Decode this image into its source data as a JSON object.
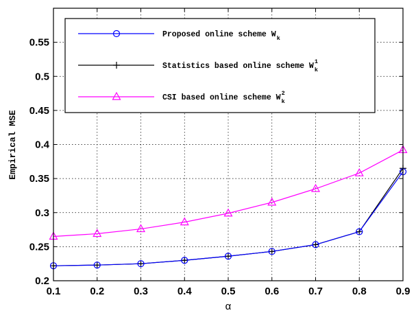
{
  "chart_data": {
    "type": "line",
    "xlabel": "α",
    "ylabel": "Empirical MSE",
    "xlim": [
      0.1,
      0.9
    ],
    "ylim": [
      0.2,
      0.6
    ],
    "x_ticks": [
      "0.1",
      "0.2",
      "0.3",
      "0.4",
      "0.5",
      "0.6",
      "0.7",
      "0.8",
      "0.9"
    ],
    "y_ticks": [
      "0.2",
      "0.25",
      "0.3",
      "0.35",
      "0.4",
      "0.45",
      "0.5",
      "0.55"
    ],
    "grid": true,
    "legend_position": "top",
    "x": [
      0.1,
      0.2,
      0.3,
      0.4,
      0.5,
      0.6,
      0.7,
      0.8,
      0.9
    ],
    "series": [
      {
        "name": "Proposed online scheme W",
        "name_subscript": "k",
        "name_superscript": "",
        "color": "#0000ff",
        "marker": "circle",
        "values": [
          0.222,
          0.223,
          0.225,
          0.23,
          0.236,
          0.243,
          0.253,
          0.272,
          0.36
        ]
      },
      {
        "name": "Statistics based online scheme W",
        "name_subscript": "k",
        "name_superscript": "1",
        "color": "#000000",
        "marker": "plus",
        "values": [
          0.222,
          0.223,
          0.225,
          0.23,
          0.236,
          0.243,
          0.253,
          0.272,
          0.365
        ]
      },
      {
        "name": "CSI based online scheme W",
        "name_subscript": "k",
        "name_superscript": "2",
        "color": "#ff00ff",
        "marker": "triangle",
        "values": [
          0.265,
          0.269,
          0.276,
          0.286,
          0.299,
          0.315,
          0.335,
          0.358,
          0.392
        ]
      }
    ]
  }
}
